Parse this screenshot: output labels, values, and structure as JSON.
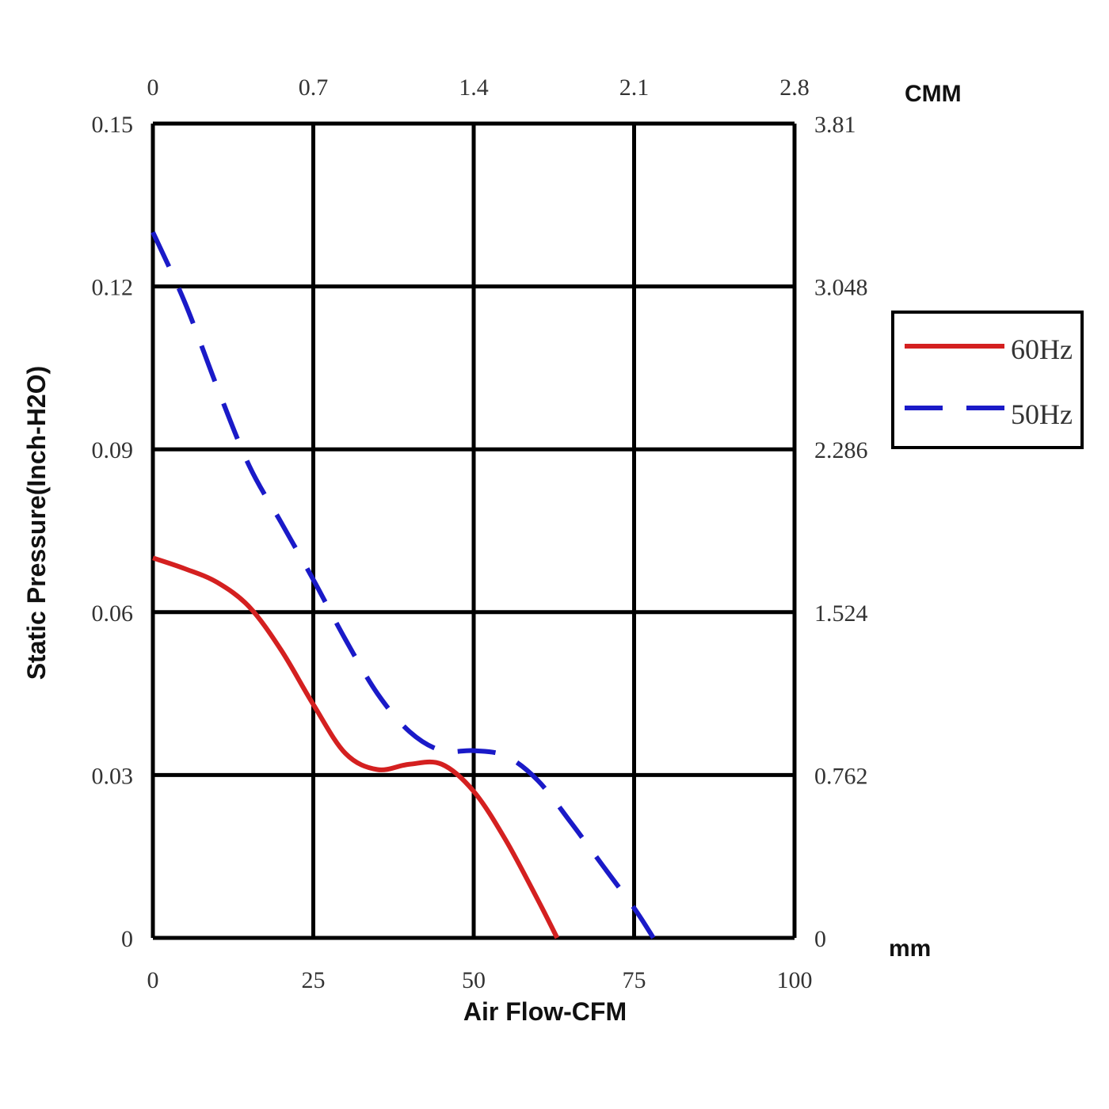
{
  "chart_data": {
    "type": "line",
    "xlabel": "Air Flow-CFM",
    "ylabel": "Static Pressure(Inch-H2O)",
    "xlim": [
      0,
      100
    ],
    "ylim": [
      0,
      0.15
    ],
    "x_ticks": [
      "0",
      "25",
      "50",
      "75",
      "100"
    ],
    "y_ticks": [
      "0",
      "0.03",
      "0.06",
      "0.09",
      "0.12",
      "0.15"
    ],
    "top_axis": {
      "unit": "CMM",
      "ticks": [
        "0",
        "0.7",
        "1.4",
        "2.1",
        "2.8"
      ]
    },
    "right_axis": {
      "unit": "mm",
      "ticks": [
        "0",
        "0.762",
        "1.524",
        "2.286",
        "3.048",
        "3.81"
      ]
    },
    "grid": true,
    "legend_position": "right",
    "series": [
      {
        "name": "60Hz",
        "color": "#d42020",
        "dash": "solid",
        "x": [
          0,
          5,
          10,
          15,
          20,
          25,
          30,
          35,
          40,
          45,
          50,
          55,
          60,
          63
        ],
        "y": [
          0.07,
          0.068,
          0.0655,
          0.061,
          0.053,
          0.043,
          0.034,
          0.031,
          0.032,
          0.032,
          0.027,
          0.018,
          0.007,
          0
        ]
      },
      {
        "name": "50Hz",
        "color": "#1a1ac8",
        "dash": "dashed",
        "x": [
          0,
          5,
          10,
          15,
          20,
          25,
          30,
          35,
          40,
          45,
          50,
          55,
          60,
          65,
          70,
          75,
          78
        ],
        "y": [
          0.13,
          0.117,
          0.1015,
          0.087,
          0.0765,
          0.066,
          0.055,
          0.045,
          0.038,
          0.0345,
          0.0345,
          0.0335,
          0.029,
          0.0215,
          0.0135,
          0.0055,
          0
        ]
      }
    ]
  }
}
